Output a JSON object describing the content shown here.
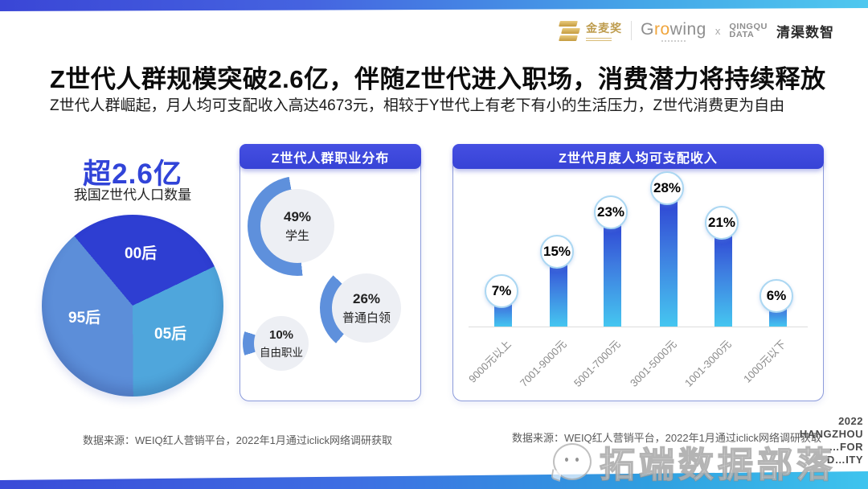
{
  "brand_bar": {
    "award": "金麦奖",
    "growing_g": "G",
    "growing_ro": "ro",
    "growing_wing": "wing",
    "times": "x",
    "data_logo_line1": "QINGQU",
    "data_logo_line2": "DATA",
    "brand_cn": "清渠数智"
  },
  "header": {
    "title": "Z世代人群规模突破2.6亿，伴随Z世代进入职场，消费潜力将持续释放",
    "subtitle": "Z世代人群崛起，月人均可支配收入高达4673元，相较于Y世代上有老下有小的生活压力，Z世代消费更为自由"
  },
  "chart_data": [
    {
      "type": "pie",
      "headline": "超2.6亿",
      "title": "我国Z世代人口数量",
      "segments": [
        {
          "label": "00后",
          "value_est_pct": 29,
          "color": "#2E3ED2"
        },
        {
          "label": "05后",
          "value_est_pct": 32,
          "color": "#4FA6DC"
        },
        {
          "label": "95后",
          "value_est_pct": 39,
          "color": "#5C8ED9"
        }
      ]
    },
    {
      "type": "donut",
      "title": "Z世代人群职业分布",
      "unit": "%",
      "items": [
        {
          "label": "学生",
          "pct": 49
        },
        {
          "label": "普通白领",
          "pct": 26
        },
        {
          "label": "自由职业",
          "pct": 10
        }
      ]
    },
    {
      "type": "bar",
      "title": "Z世代月度人均可支配收入",
      "unit": "%",
      "categories": [
        "9000元以上",
        "7001-9000元",
        "5001-7000元",
        "3001-5000元",
        "1001-3000元",
        "1000元以下"
      ],
      "values": [
        7,
        15,
        23,
        28,
        21,
        6
      ]
    }
  ],
  "sources": {
    "left": "数据来源：WEIQ红人营销平台，2022年1月通过iclick网络调研获取",
    "right": "数据来源：WEIQ红人营销平台，2022年1月通过iclick网络调研获取"
  },
  "corner": {
    "lines": [
      "2022",
      "HANGZHOU",
      "…FOR",
      "D…ITY"
    ]
  },
  "watermark": {
    "text": "拓端数据部落"
  },
  "colors": {
    "accent_blue": "#3743D6",
    "headline_blue": "#3144D8",
    "donut_arc": "#5E90DC",
    "donut_hole": "#EDEFF4",
    "bar_gradient_top": "#2B3AD1",
    "bar_gradient_bottom": "#45C6F0",
    "circle_border": "#ABD7F2"
  }
}
